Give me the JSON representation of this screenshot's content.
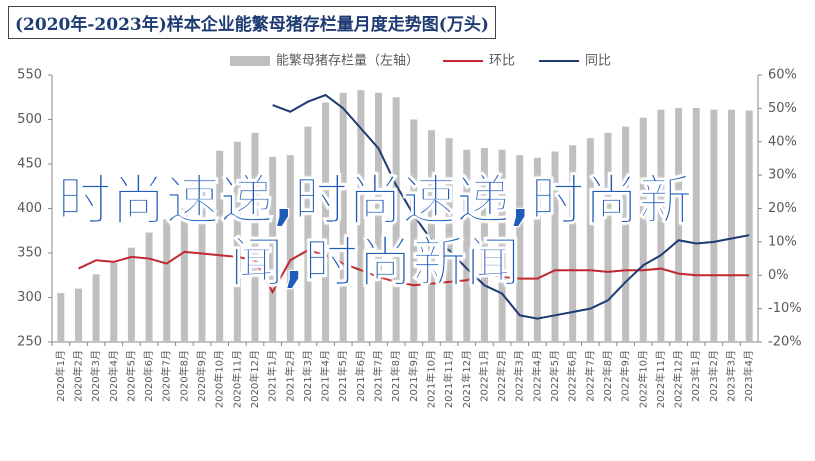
{
  "chart_data": {
    "type": "bar_line",
    "title": "(2020年-2023年)样本企业能繁母猪存栏量月度走势图(万头)",
    "watermark": "时尚速递,时尚速递,时尚新闻,时尚新闻",
    "categories": [
      "2020年1月",
      "2020年2月",
      "2020年3月",
      "2020年4月",
      "2020年5月",
      "2020年6月",
      "2020年7月",
      "2020年8月",
      "2020年9月",
      "2020年10月",
      "2020年11月",
      "2020年12月",
      "2021年1月",
      "2021年2月",
      "2021年3月",
      "2021年4月",
      "2021年5月",
      "2021年6月",
      "2021年7月",
      "2021年8月",
      "2021年9月",
      "2021年10月",
      "2021年11月",
      "2021年12月",
      "2022年1月",
      "2022年2月",
      "2022年3月",
      "2022年4月",
      "2022年5月",
      "2022年6月",
      "2022年7月",
      "2022年8月",
      "2022年9月",
      "2022年10月",
      "2022年11月",
      "2022年12月",
      "2023年1月",
      "2023年2月",
      "2023年3月",
      "2023年4月"
    ],
    "series": [
      {
        "name": "能繁母猪存栏量（左轴）",
        "type": "bar",
        "color": "#bfbfbf",
        "values": [
          305,
          310,
          326,
          339,
          356,
          373,
          388,
          400,
          425,
          465,
          475,
          485,
          458,
          460,
          492,
          519,
          530,
          533,
          530,
          525,
          500,
          488,
          479,
          466,
          468,
          466,
          460,
          457,
          464,
          471,
          479,
          485,
          492,
          502,
          511,
          513,
          513,
          511,
          511,
          510
        ]
      },
      {
        "name": "环比",
        "type": "line",
        "axis": "y2",
        "color": "#c0282d",
        "values": [
          null,
          2,
          4.5,
          4,
          5.5,
          5,
          3.5,
          7,
          6.5,
          6,
          5.5,
          4.5,
          -5,
          4.5,
          7.5,
          6,
          3.5,
          1.5,
          -0.5,
          -2,
          -3,
          -2.5,
          -2,
          -1.5,
          0.5,
          -0.5,
          -1,
          -1,
          1.5,
          1.5,
          1.5,
          1,
          1.5,
          1.5,
          2,
          0.5,
          0,
          0,
          0,
          0
        ]
      },
      {
        "name": "同比",
        "type": "line",
        "axis": "y2",
        "color": "#1f3b73",
        "values": [
          null,
          null,
          null,
          null,
          null,
          null,
          null,
          null,
          null,
          null,
          null,
          null,
          51,
          49,
          52,
          54,
          50,
          44,
          38,
          27,
          18,
          10.5,
          7.5,
          2,
          -3,
          -5.5,
          -12,
          -13,
          -12,
          -11,
          -10,
          -7.5,
          -2,
          3,
          6,
          10.5,
          9.5,
          10,
          11,
          12
        ]
      }
    ],
    "ylim": [
      250,
      550
    ],
    "yticks": [
      250,
      300,
      350,
      400,
      450,
      500,
      550
    ],
    "y2lim": [
      -20,
      60
    ],
    "y2ticks": [
      {
        "value": -20,
        "label": "-20%"
      },
      {
        "value": -10,
        "label": "-10%"
      },
      {
        "value": 0,
        "label": "0%"
      },
      {
        "value": 10,
        "label": "10%"
      },
      {
        "value": 20,
        "label": "20%"
      },
      {
        "value": 30,
        "label": "30%"
      },
      {
        "value": 40,
        "label": "40%"
      },
      {
        "value": 50,
        "label": "50%"
      },
      {
        "value": 60,
        "label": "60%"
      }
    ],
    "legend": "top"
  }
}
